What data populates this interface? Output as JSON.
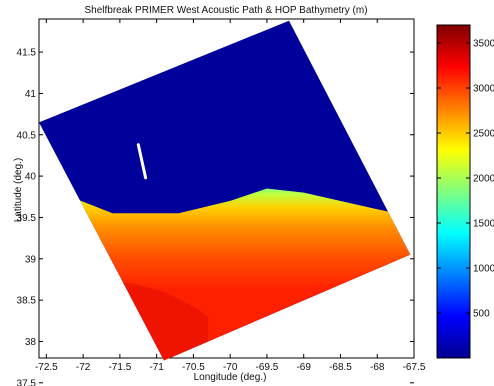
{
  "chart_data": {
    "type": "heatmap",
    "title": "Shelfbreak PRIMER West Acoustic Path & HOP Bathymetry (m)",
    "xlabel": "Longitude (deg.)",
    "ylabel": "Latitude (deg.)",
    "xlim": [
      -72.6,
      -67.5
    ],
    "ylim": [
      37.8,
      41.9
    ],
    "x_ticks": [
      "-72.5",
      "-72",
      "-71.5",
      "-71",
      "-70.5",
      "-70",
      "-69.5",
      "-69",
      "-68.5",
      "-68",
      "-67.5"
    ],
    "y_ticks": [
      "37.5",
      "38",
      "38.5",
      "39",
      "39.5",
      "40",
      "40.5",
      "41",
      "41.5"
    ],
    "grid": false,
    "region_corners": [
      {
        "lon": -72.6,
        "lat": 40.65
      },
      {
        "lon": -69.2,
        "lat": 41.88
      },
      {
        "lon": -67.55,
        "lat": 39.05
      },
      {
        "lon": -70.9,
        "lat": 37.77
      }
    ],
    "shelfbreak_front": [
      {
        "lon": -72.6,
        "lat": 39.9
      },
      {
        "lon": -71.6,
        "lat": 39.55
      },
      {
        "lon": -70.7,
        "lat": 39.55
      },
      {
        "lon": -70.0,
        "lat": 39.7
      },
      {
        "lon": -69.5,
        "lat": 39.85
      },
      {
        "lon": -69.0,
        "lat": 39.8
      },
      {
        "lon": -68.0,
        "lat": 39.6
      },
      {
        "lon": -67.5,
        "lat": 39.5
      }
    ],
    "acoustic_path": [
      {
        "lon": -71.25,
        "lat": 40.38
      },
      {
        "lon": -71.15,
        "lat": 39.98
      }
    ],
    "colorbar": {
      "min": 0,
      "max": 3700,
      "ticks": [
        "500",
        "1000",
        "1500",
        "2000",
        "2500",
        "3000",
        "3500"
      ],
      "colormap": "jet"
    }
  }
}
